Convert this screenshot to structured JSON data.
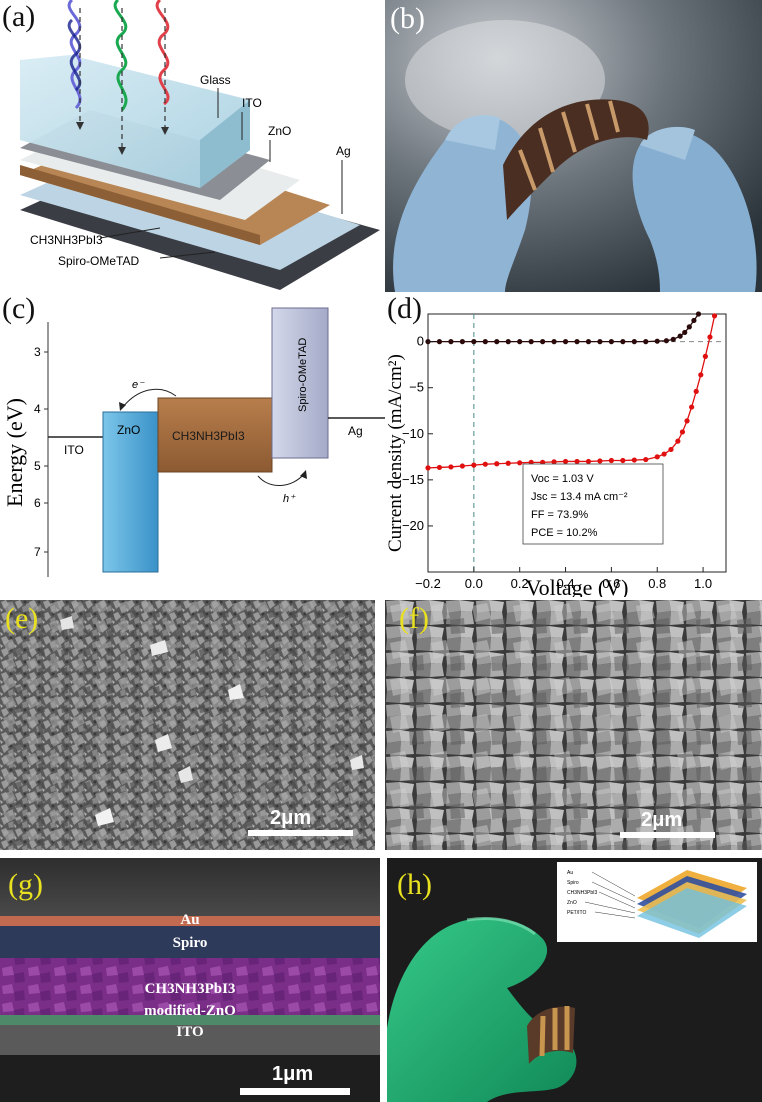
{
  "figure": {
    "panel_labels": [
      "(a)",
      "(b)",
      "(c)",
      "(d)",
      "(e)",
      "(f)",
      "(g)",
      "(h)"
    ]
  },
  "panel_a": {
    "layers": [
      "Glass",
      "ITO",
      "ZnO",
      "Ag",
      "CH3NH3PbI3",
      "Spiro-OMeTAD"
    ]
  },
  "panel_c": {
    "ylabel": "Energy (eV)",
    "yticks": [
      "3",
      "4",
      "5",
      "6",
      "7"
    ],
    "labels": {
      "ito": "ITO",
      "zno": "ZnO",
      "perovskite": "CH3NH3PbI3",
      "spiro": "Spiro-OMeTAD",
      "ag": "Ag",
      "electron": "e⁻",
      "hole": "h⁺"
    }
  },
  "chart_data": {
    "type": "line",
    "xlabel": "Voltage (V)",
    "ylabel": "Current density (mA/cm²)",
    "xlim": [
      -0.2,
      1.1
    ],
    "ylim": [
      -25,
      3
    ],
    "xticks": [
      "−0.2",
      "0.0",
      "0.2",
      "0.4",
      "0.6",
      "0.8",
      "1.0"
    ],
    "yticks": [
      "0",
      "−5",
      "−10",
      "−15",
      "−20"
    ],
    "series": [
      {
        "color": "#2a0a0a",
        "x": [
          -0.2,
          -0.15,
          -0.1,
          -0.05,
          0.0,
          0.05,
          0.1,
          0.15,
          0.2,
          0.25,
          0.3,
          0.35,
          0.4,
          0.45,
          0.5,
          0.55,
          0.6,
          0.65,
          0.7,
          0.75,
          0.8,
          0.84,
          0.87,
          0.9,
          0.92,
          0.94,
          0.96,
          0.98
        ],
        "y": [
          0,
          0,
          0,
          0,
          0,
          0,
          0,
          0,
          0,
          0,
          0,
          0,
          0,
          0,
          0,
          0,
          0,
          0,
          0,
          0,
          0.05,
          0.1,
          0.25,
          0.6,
          1.0,
          1.6,
          2.3,
          3.0
        ]
      },
      {
        "color": "#e01010",
        "x": [
          -0.2,
          -0.15,
          -0.1,
          -0.05,
          0.0,
          0.05,
          0.1,
          0.15,
          0.2,
          0.25,
          0.3,
          0.35,
          0.4,
          0.45,
          0.5,
          0.55,
          0.6,
          0.65,
          0.7,
          0.75,
          0.8,
          0.83,
          0.86,
          0.89,
          0.91,
          0.93,
          0.95,
          0.97,
          0.99,
          1.01,
          1.03,
          1.05
        ],
        "y": [
          -13.7,
          -13.65,
          -13.6,
          -13.5,
          -13.4,
          -13.3,
          -13.25,
          -13.2,
          -13.15,
          -13.1,
          -13.1,
          -13.05,
          -13.0,
          -13.0,
          -13.0,
          -12.95,
          -12.9,
          -12.9,
          -12.85,
          -12.8,
          -12.5,
          -12.2,
          -11.7,
          -10.8,
          -9.8,
          -8.6,
          -7.1,
          -5.4,
          -3.6,
          -1.6,
          0.5,
          2.8
        ]
      }
    ],
    "annotation": {
      "voc": "Voc = 1.03 V",
      "jsc": "Jsc = 13.4 mA cm⁻²",
      "ff": "FF = 73.9%",
      "pce": "PCE = 10.2%"
    }
  },
  "panel_e": {
    "scale": "2μm"
  },
  "panel_f": {
    "scale": "2μm"
  },
  "panel_g": {
    "layers": [
      "Au",
      "Spiro",
      "CH3NH3PbI3",
      "modified-ZnO",
      "ITO"
    ],
    "scale": "1μm"
  },
  "panel_h": {
    "inset_labels": [
      "Au",
      "Spiro",
      "CH3NH3PbI3",
      "ZnO",
      "PET/ITO"
    ]
  },
  "colors": {
    "label_yellow": "#e8e020",
    "zno_blue": "#4aa6d8",
    "perovskite_brown": "#a8724a",
    "spiro_lavender": "#b8bed8",
    "glove_green": "#1faa6e"
  }
}
